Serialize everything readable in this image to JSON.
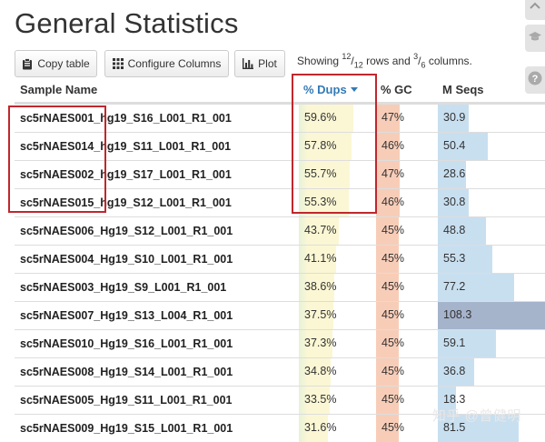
{
  "page": {
    "title": "General Statistics",
    "watermark": "知乎 @曾健明"
  },
  "toolbar": {
    "copy_label": "Copy table",
    "configure_label": "Configure Columns",
    "plot_label": "Plot",
    "showing_prefix": "Showing ",
    "rows_shown": "12",
    "rows_total": "12",
    "showing_mid": " rows and ",
    "cols_shown": "3",
    "cols_total": "6",
    "showing_suffix": " columns."
  },
  "table": {
    "headers": {
      "sample": "Sample Name",
      "dups": "% Dups",
      "gc": "% GC",
      "mseqs": "M Seqs"
    },
    "sorted_column": "dups",
    "colors": {
      "dups_bar": "#fbf7d4",
      "dups_bar_edge": "#e6f2d8",
      "gc_bar": "#f8cdb8",
      "mseqs_bar": "#c8dff0",
      "mseqs_bar_max": "#a5b3cb",
      "highlight": "#c0272d",
      "sort_accent": "#337ab7"
    },
    "rows": [
      {
        "name": "sc5rNAES001_hg19_S16_L001_R1_001",
        "dups": "59.6%",
        "dups_num": 59.6,
        "gc": "47%",
        "gc_num": 47,
        "mseqs": "30.9",
        "mseqs_num": 30.9
      },
      {
        "name": "sc5rNAES014_hg19_S11_L001_R1_001",
        "dups": "57.8%",
        "dups_num": 57.8,
        "gc": "46%",
        "gc_num": 46,
        "mseqs": "50.4",
        "mseqs_num": 50.4
      },
      {
        "name": "sc5rNAES002_hg19_S17_L001_R1_001",
        "dups": "55.7%",
        "dups_num": 55.7,
        "gc": "47%",
        "gc_num": 47,
        "mseqs": "28.6",
        "mseqs_num": 28.6
      },
      {
        "name": "sc5rNAES015_hg19_S12_L001_R1_001",
        "dups": "55.3%",
        "dups_num": 55.3,
        "gc": "46%",
        "gc_num": 46,
        "mseqs": "30.8",
        "mseqs_num": 30.8
      },
      {
        "name": "sc5rNAES006_Hg19_S12_L001_R1_001",
        "dups": "43.7%",
        "dups_num": 43.7,
        "gc": "45%",
        "gc_num": 45,
        "mseqs": "48.8",
        "mseqs_num": 48.8
      },
      {
        "name": "sc5rNAES004_Hg19_S10_L001_R1_001",
        "dups": "41.1%",
        "dups_num": 41.1,
        "gc": "45%",
        "gc_num": 45,
        "mseqs": "55.3",
        "mseqs_num": 55.3
      },
      {
        "name": "sc5rNAES003_Hg19_S9_L001_R1_001",
        "dups": "38.6%",
        "dups_num": 38.6,
        "gc": "45%",
        "gc_num": 45,
        "mseqs": "77.2",
        "mseqs_num": 77.2
      },
      {
        "name": "sc5rNAES007_Hg19_S13_L004_R1_001",
        "dups": "37.5%",
        "dups_num": 37.5,
        "gc": "45%",
        "gc_num": 45,
        "mseqs": "108.3",
        "mseqs_num": 108.3
      },
      {
        "name": "sc5rNAES010_Hg19_S16_L001_R1_001",
        "dups": "37.3%",
        "dups_num": 37.3,
        "gc": "45%",
        "gc_num": 45,
        "mseqs": "59.1",
        "mseqs_num": 59.1
      },
      {
        "name": "sc5rNAES008_Hg19_S14_L001_R1_001",
        "dups": "34.8%",
        "dups_num": 34.8,
        "gc": "45%",
        "gc_num": 45,
        "mseqs": "36.8",
        "mseqs_num": 36.8
      },
      {
        "name": "sc5rNAES005_Hg19_S11_L001_R1_001",
        "dups": "33.5%",
        "dups_num": 33.5,
        "gc": "45%",
        "gc_num": 45,
        "mseqs": "18.3",
        "mseqs_num": 18.3
      },
      {
        "name": "sc5rNAES009_Hg19_S15_L001_R1_001",
        "dups": "31.6%",
        "dups_num": 31.6,
        "gc": "45%",
        "gc_num": 45,
        "mseqs": "81.5",
        "mseqs_num": 81.5
      }
    ]
  },
  "side_icons": [
    "chevron-up-icon",
    "graduation-cap-icon",
    "question-icon"
  ]
}
